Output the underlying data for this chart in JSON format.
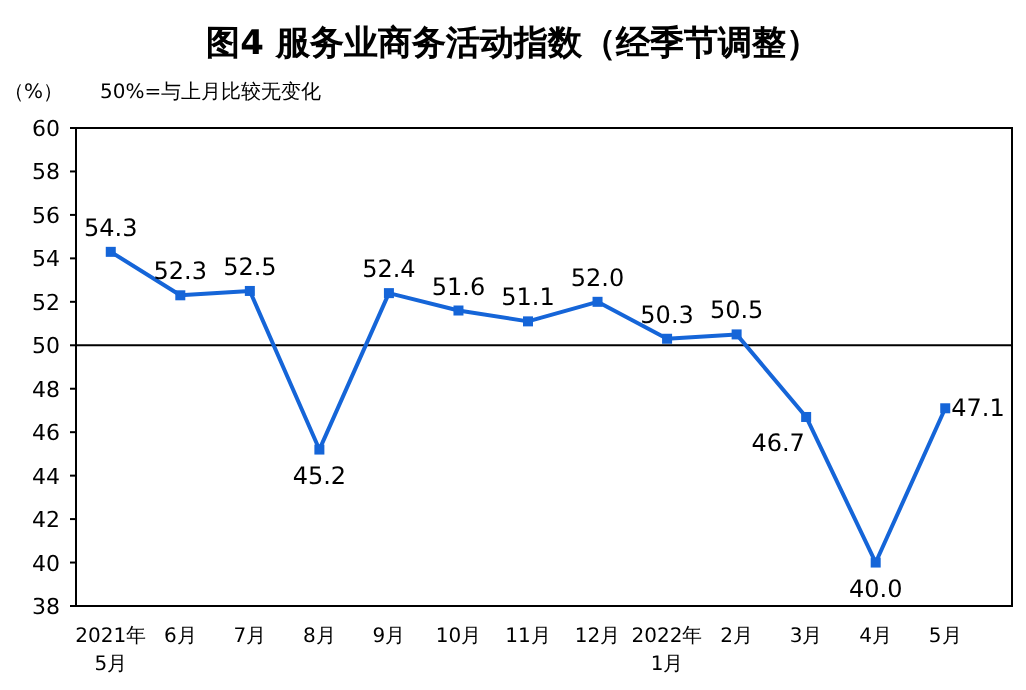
{
  "chart_data": {
    "type": "line",
    "title": "图4 服务业商务活动指数（经季节调整）",
    "ylabel": "（%）",
    "annotations": [
      "50%=与上月比较无变化"
    ],
    "categories": [
      "2021年\n5月",
      "6月",
      "7月",
      "8月",
      "9月",
      "10月",
      "11月",
      "12月",
      "2022年\n1月",
      "2月",
      "3月",
      "4月",
      "5月"
    ],
    "series": [
      {
        "color": "#1565d8",
        "values": [
          54.3,
          52.3,
          52.5,
          45.2,
          52.4,
          51.6,
          51.1,
          52.0,
          50.3,
          50.5,
          46.7,
          40.0,
          47.1
        ]
      }
    ],
    "value_labels": [
      "54.3",
      "52.3",
      "52.5",
      "45.2",
      "52.4",
      "51.6",
      "51.1",
      "52.0",
      "50.3",
      "50.5",
      "46.7",
      "40.0",
      "47.1"
    ],
    "marker": "square",
    "line_style": "solid",
    "ylim": [
      38,
      60
    ],
    "yticks": [
      38,
      40,
      42,
      44,
      46,
      48,
      50,
      52,
      54,
      56,
      58,
      60
    ],
    "ref_lines": [
      {
        "axis": "y",
        "value": 50,
        "color": "#000000"
      }
    ],
    "grid": false
  }
}
